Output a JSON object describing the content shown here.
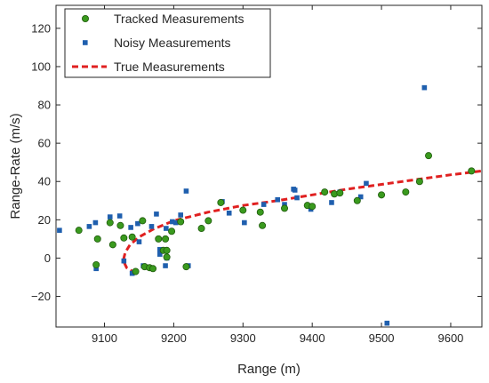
{
  "colors": {
    "tracked": "#3a9a1e",
    "tracked_edge": "#1f5a0c",
    "noisy": "#1f5fae",
    "true": "#e02020",
    "axis": "#262626",
    "grid": "#d9d9d9"
  },
  "chart_data": {
    "type": "scatter",
    "title": "",
    "xlabel": "Range (m)",
    "ylabel": "Range-Rate (m/s)",
    "xlim": [
      9030,
      9645
    ],
    "ylim": [
      -36,
      132
    ],
    "xticks": [
      9100,
      9200,
      9300,
      9400,
      9500,
      9600
    ],
    "xtick_labels": [
      "9100",
      "9200",
      "9300",
      "9400",
      "9500",
      "9600"
    ],
    "yticks": [
      -20,
      0,
      20,
      40,
      60,
      80,
      100,
      120
    ],
    "ytick_labels": [
      "−20",
      "0",
      "20",
      "40",
      "60",
      "80",
      "100",
      "120"
    ],
    "grid": false,
    "legend_position": "top-left",
    "series": [
      {
        "name": "Tracked Measurements",
        "marker": "circle",
        "points": [
          [
            9063,
            14.5
          ],
          [
            9088,
            -3.5
          ],
          [
            9090,
            10
          ],
          [
            9108,
            18.5
          ],
          [
            9112,
            7
          ],
          [
            9123,
            17
          ],
          [
            9128,
            10.5
          ],
          [
            9140,
            11
          ],
          [
            9145,
            -7
          ],
          [
            9155,
            19.5
          ],
          [
            9158,
            -4.5
          ],
          [
            9165,
            -5
          ],
          [
            9170,
            -5.5
          ],
          [
            9178,
            10
          ],
          [
            9185,
            4
          ],
          [
            9188,
            10
          ],
          [
            9190,
            4
          ],
          [
            9190,
            0.5
          ],
          [
            9197,
            14
          ],
          [
            9210,
            19
          ],
          [
            9218,
            -4.5
          ],
          [
            9240,
            15.5
          ],
          [
            9250,
            19.5
          ],
          [
            9268,
            29
          ],
          [
            9300,
            25
          ],
          [
            9325,
            24
          ],
          [
            9328,
            17
          ],
          [
            9360,
            26
          ],
          [
            9393,
            27.5
          ],
          [
            9400,
            27
          ],
          [
            9418,
            34.5
          ],
          [
            9432,
            33.5
          ],
          [
            9440,
            34
          ],
          [
            9465,
            30
          ],
          [
            9500,
            33
          ],
          [
            9535,
            34.5
          ],
          [
            9555,
            40
          ],
          [
            9568,
            53.5
          ],
          [
            9630,
            45.5
          ]
        ]
      },
      {
        "name": "Noisy Measurements",
        "marker": "square",
        "points": [
          [
            9035,
            14.5
          ],
          [
            9078,
            16.5
          ],
          [
            9087,
            18.5
          ],
          [
            9088,
            -5.5
          ],
          [
            9108,
            21.5
          ],
          [
            9122,
            22
          ],
          [
            9128,
            -1.5
          ],
          [
            9138,
            16
          ],
          [
            9140,
            -8
          ],
          [
            9143,
            -7.5
          ],
          [
            9148,
            18
          ],
          [
            9150,
            8.5
          ],
          [
            9156,
            -4
          ],
          [
            9168,
            16.5
          ],
          [
            9175,
            23
          ],
          [
            9180,
            4.5
          ],
          [
            9180,
            2
          ],
          [
            9188,
            -4
          ],
          [
            9189,
            15.5
          ],
          [
            9190,
            0
          ],
          [
            9198,
            19
          ],
          [
            9203,
            18.5
          ],
          [
            9210,
            22.5
          ],
          [
            9218,
            35
          ],
          [
            9221,
            -4
          ],
          [
            9270,
            29.5
          ],
          [
            9280,
            23.5
          ],
          [
            9302,
            18.5
          ],
          [
            9330,
            28
          ],
          [
            9350,
            30.5
          ],
          [
            9360,
            28
          ],
          [
            9373,
            36
          ],
          [
            9375,
            35.5
          ],
          [
            9378,
            31.5
          ],
          [
            9398,
            25.5
          ],
          [
            9428,
            29
          ],
          [
            9440,
            34.5
          ],
          [
            9470,
            32
          ],
          [
            9478,
            39
          ],
          [
            9508,
            -34
          ],
          [
            9562,
            89
          ]
        ]
      },
      {
        "name": "True Measurements",
        "marker": "dashed-line",
        "points": [
          [
            9145,
            -8
          ],
          [
            9132,
            -5
          ],
          [
            9128,
            -2
          ],
          [
            9128,
            0
          ],
          [
            9130,
            3
          ],
          [
            9137,
            7
          ],
          [
            9150,
            11
          ],
          [
            9170,
            15
          ],
          [
            9200,
            19.5
          ],
          [
            9250,
            24
          ],
          [
            9300,
            27.5
          ],
          [
            9350,
            30
          ],
          [
            9400,
            33
          ],
          [
            9450,
            36
          ],
          [
            9500,
            38.5
          ],
          [
            9550,
            41
          ],
          [
            9600,
            43.5
          ],
          [
            9645,
            45.5
          ]
        ]
      }
    ]
  }
}
